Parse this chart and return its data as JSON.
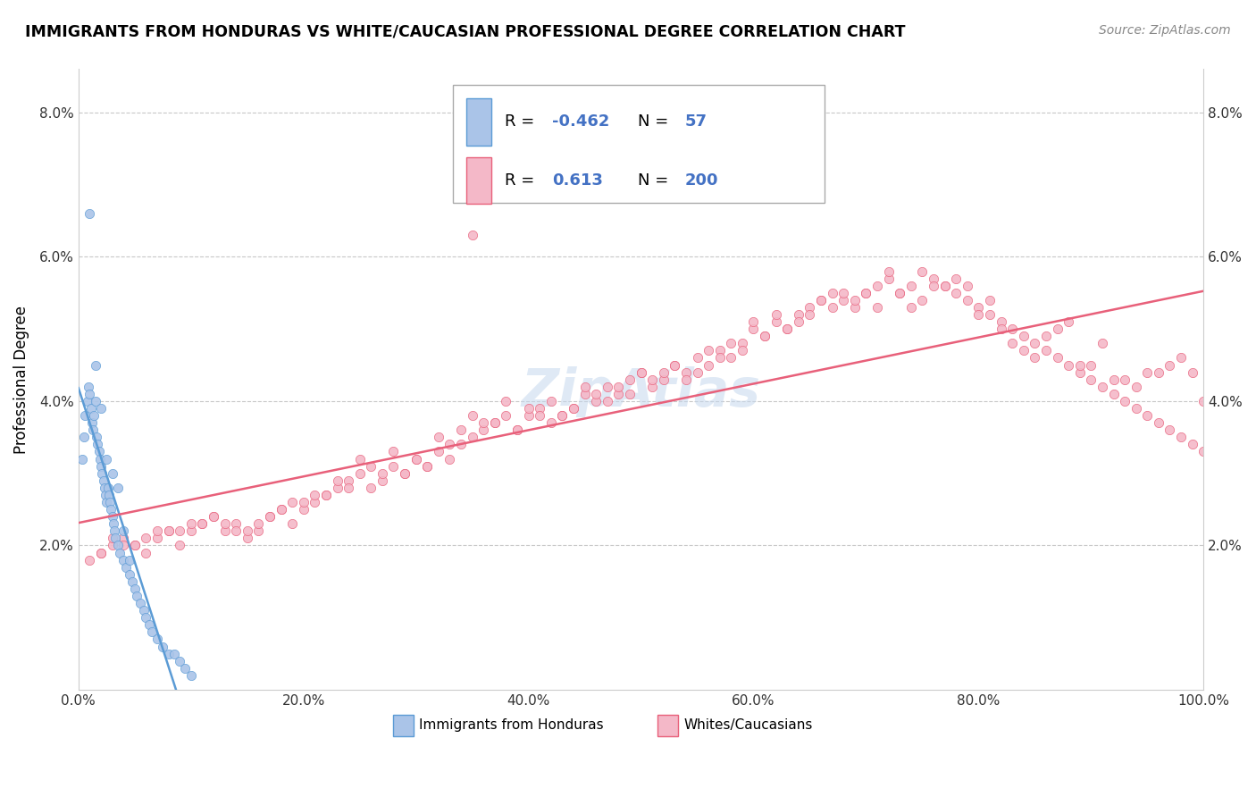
{
  "title": "IMMIGRANTS FROM HONDURAS VS WHITE/CAUCASIAN PROFESSIONAL DEGREE CORRELATION CHART",
  "source_text": "Source: ZipAtlas.com",
  "ylabel": "Professional Degree",
  "legend_entry1": {
    "label": "Immigrants from Honduras",
    "R": "-0.462",
    "N": "57",
    "color": "#aac4e8",
    "line_color": "#5b9bd5"
  },
  "legend_entry2": {
    "label": "Whites/Caucasians",
    "R": "0.613",
    "N": "200",
    "color": "#f4b8c8",
    "line_color": "#e8607a"
  },
  "r_label_color": "#4472c4",
  "background_color": "#ffffff",
  "grid_color": "#c8c8c8",
  "watermark": "ZipAtlas",
  "blue_x": [
    0.3,
    0.5,
    0.6,
    0.8,
    0.9,
    1.0,
    1.1,
    1.2,
    1.3,
    1.4,
    1.5,
    1.6,
    1.7,
    1.8,
    1.9,
    2.0,
    2.1,
    2.2,
    2.3,
    2.4,
    2.5,
    2.6,
    2.7,
    2.8,
    2.9,
    3.0,
    3.1,
    3.2,
    3.3,
    3.5,
    3.7,
    4.0,
    4.2,
    4.5,
    4.8,
    5.0,
    5.2,
    5.5,
    5.8,
    6.0,
    6.3,
    6.5,
    7.0,
    7.5,
    8.0,
    8.5,
    9.0,
    9.5,
    10.0,
    1.0,
    1.5,
    2.0,
    2.5,
    3.0,
    3.5,
    4.0,
    4.5
  ],
  "blue_y": [
    3.2,
    3.5,
    3.8,
    4.0,
    4.2,
    4.1,
    3.9,
    3.7,
    3.6,
    3.8,
    4.0,
    3.5,
    3.4,
    3.3,
    3.2,
    3.1,
    3.0,
    2.9,
    2.8,
    2.7,
    2.6,
    2.8,
    2.7,
    2.6,
    2.5,
    2.4,
    2.3,
    2.2,
    2.1,
    2.0,
    1.9,
    1.8,
    1.7,
    1.6,
    1.5,
    1.4,
    1.3,
    1.2,
    1.1,
    1.0,
    0.9,
    0.8,
    0.7,
    0.6,
    0.5,
    0.5,
    0.4,
    0.3,
    0.2,
    6.6,
    4.5,
    3.9,
    3.2,
    3.0,
    2.8,
    2.2,
    1.8
  ],
  "pink_x": [
    1.0,
    2.0,
    3.0,
    4.0,
    5.0,
    6.0,
    7.0,
    8.0,
    9.0,
    10.0,
    11.0,
    12.0,
    13.0,
    14.0,
    15.0,
    16.0,
    17.0,
    18.0,
    19.0,
    20.0,
    21.0,
    22.0,
    23.0,
    24.0,
    25.0,
    26.0,
    27.0,
    28.0,
    29.0,
    30.0,
    31.0,
    32.0,
    33.0,
    34.0,
    35.0,
    36.0,
    37.0,
    38.0,
    39.0,
    40.0,
    41.0,
    42.0,
    43.0,
    44.0,
    45.0,
    46.0,
    47.0,
    48.0,
    49.0,
    50.0,
    51.0,
    52.0,
    53.0,
    54.0,
    55.0,
    56.0,
    57.0,
    58.0,
    59.0,
    60.0,
    61.0,
    62.0,
    63.0,
    64.0,
    65.0,
    66.0,
    67.0,
    68.0,
    69.0,
    70.0,
    71.0,
    72.0,
    73.0,
    74.0,
    75.0,
    76.0,
    77.0,
    78.0,
    79.0,
    80.0,
    81.0,
    82.0,
    83.0,
    84.0,
    85.0,
    86.0,
    87.0,
    88.0,
    89.0,
    90.0,
    91.0,
    92.0,
    93.0,
    94.0,
    95.0,
    96.0,
    97.0,
    98.0,
    99.0,
    100.0,
    5.0,
    15.0,
    25.0,
    35.0,
    45.0,
    55.0,
    65.0,
    75.0,
    85.0,
    95.0,
    3.0,
    13.0,
    23.0,
    33.0,
    43.0,
    53.0,
    63.0,
    73.0,
    83.0,
    93.0,
    7.0,
    17.0,
    27.0,
    37.0,
    47.0,
    57.0,
    67.0,
    77.0,
    87.0,
    97.0,
    10.0,
    20.0,
    30.0,
    40.0,
    50.0,
    60.0,
    70.0,
    80.0,
    90.0,
    100.0,
    4.0,
    14.0,
    24.0,
    34.0,
    44.0,
    54.0,
    64.0,
    74.0,
    84.0,
    94.0,
    6.0,
    16.0,
    26.0,
    36.0,
    46.0,
    56.0,
    66.0,
    76.0,
    86.0,
    96.0,
    2.0,
    12.0,
    22.0,
    32.0,
    42.0,
    52.0,
    62.0,
    72.0,
    82.0,
    92.0,
    8.0,
    18.0,
    28.0,
    38.0,
    48.0,
    58.0,
    68.0,
    78.0,
    88.0,
    98.0,
    11.0,
    21.0,
    31.0,
    41.0,
    51.0,
    61.0,
    71.0,
    81.0,
    91.0,
    9.0,
    19.0,
    29.0,
    39.0,
    49.0,
    59.0,
    69.0,
    79.0,
    89.0,
    99.0,
    35.0
  ],
  "pink_y": [
    1.8,
    1.9,
    2.0,
    2.1,
    2.0,
    1.9,
    2.1,
    2.2,
    2.0,
    2.2,
    2.3,
    2.4,
    2.2,
    2.3,
    2.1,
    2.2,
    2.4,
    2.5,
    2.3,
    2.5,
    2.6,
    2.7,
    2.8,
    2.9,
    3.0,
    2.8,
    2.9,
    3.1,
    3.0,
    3.2,
    3.1,
    3.3,
    3.2,
    3.4,
    3.5,
    3.6,
    3.7,
    3.8,
    3.6,
    3.8,
    3.9,
    4.0,
    3.8,
    3.9,
    4.1,
    4.0,
    4.2,
    4.1,
    4.3,
    4.4,
    4.2,
    4.3,
    4.5,
    4.4,
    4.6,
    4.5,
    4.7,
    4.6,
    4.8,
    5.0,
    4.9,
    5.1,
    5.0,
    5.2,
    5.3,
    5.4,
    5.5,
    5.4,
    5.3,
    5.5,
    5.6,
    5.7,
    5.5,
    5.6,
    5.8,
    5.7,
    5.6,
    5.5,
    5.4,
    5.3,
    5.2,
    5.1,
    5.0,
    4.9,
    4.8,
    4.7,
    4.6,
    4.5,
    4.4,
    4.3,
    4.2,
    4.1,
    4.0,
    3.9,
    3.8,
    3.7,
    3.6,
    3.5,
    3.4,
    3.3,
    2.0,
    2.2,
    3.2,
    3.8,
    4.2,
    4.4,
    5.2,
    5.4,
    4.6,
    4.4,
    2.1,
    2.3,
    2.9,
    3.4,
    3.8,
    4.5,
    5.0,
    5.5,
    4.8,
    4.3,
    2.2,
    2.4,
    3.0,
    3.7,
    4.0,
    4.6,
    5.3,
    5.6,
    5.0,
    4.5,
    2.3,
    2.6,
    3.2,
    3.9,
    4.4,
    5.1,
    5.5,
    5.2,
    4.5,
    4.0,
    2.0,
    2.2,
    2.8,
    3.6,
    3.9,
    4.3,
    5.1,
    5.3,
    4.7,
    4.2,
    2.1,
    2.3,
    3.1,
    3.7,
    4.1,
    4.7,
    5.4,
    5.6,
    4.9,
    4.4,
    1.9,
    2.4,
    2.7,
    3.5,
    3.7,
    4.4,
    5.2,
    5.8,
    5.0,
    4.3,
    2.2,
    2.5,
    3.3,
    4.0,
    4.2,
    4.8,
    5.5,
    5.7,
    5.1,
    4.6,
    2.3,
    2.7,
    3.1,
    3.8,
    4.3,
    4.9,
    5.3,
    5.4,
    4.8,
    2.2,
    2.6,
    3.0,
    3.6,
    4.1,
    4.7,
    5.4,
    5.6,
    4.5,
    4.4,
    6.3
  ]
}
